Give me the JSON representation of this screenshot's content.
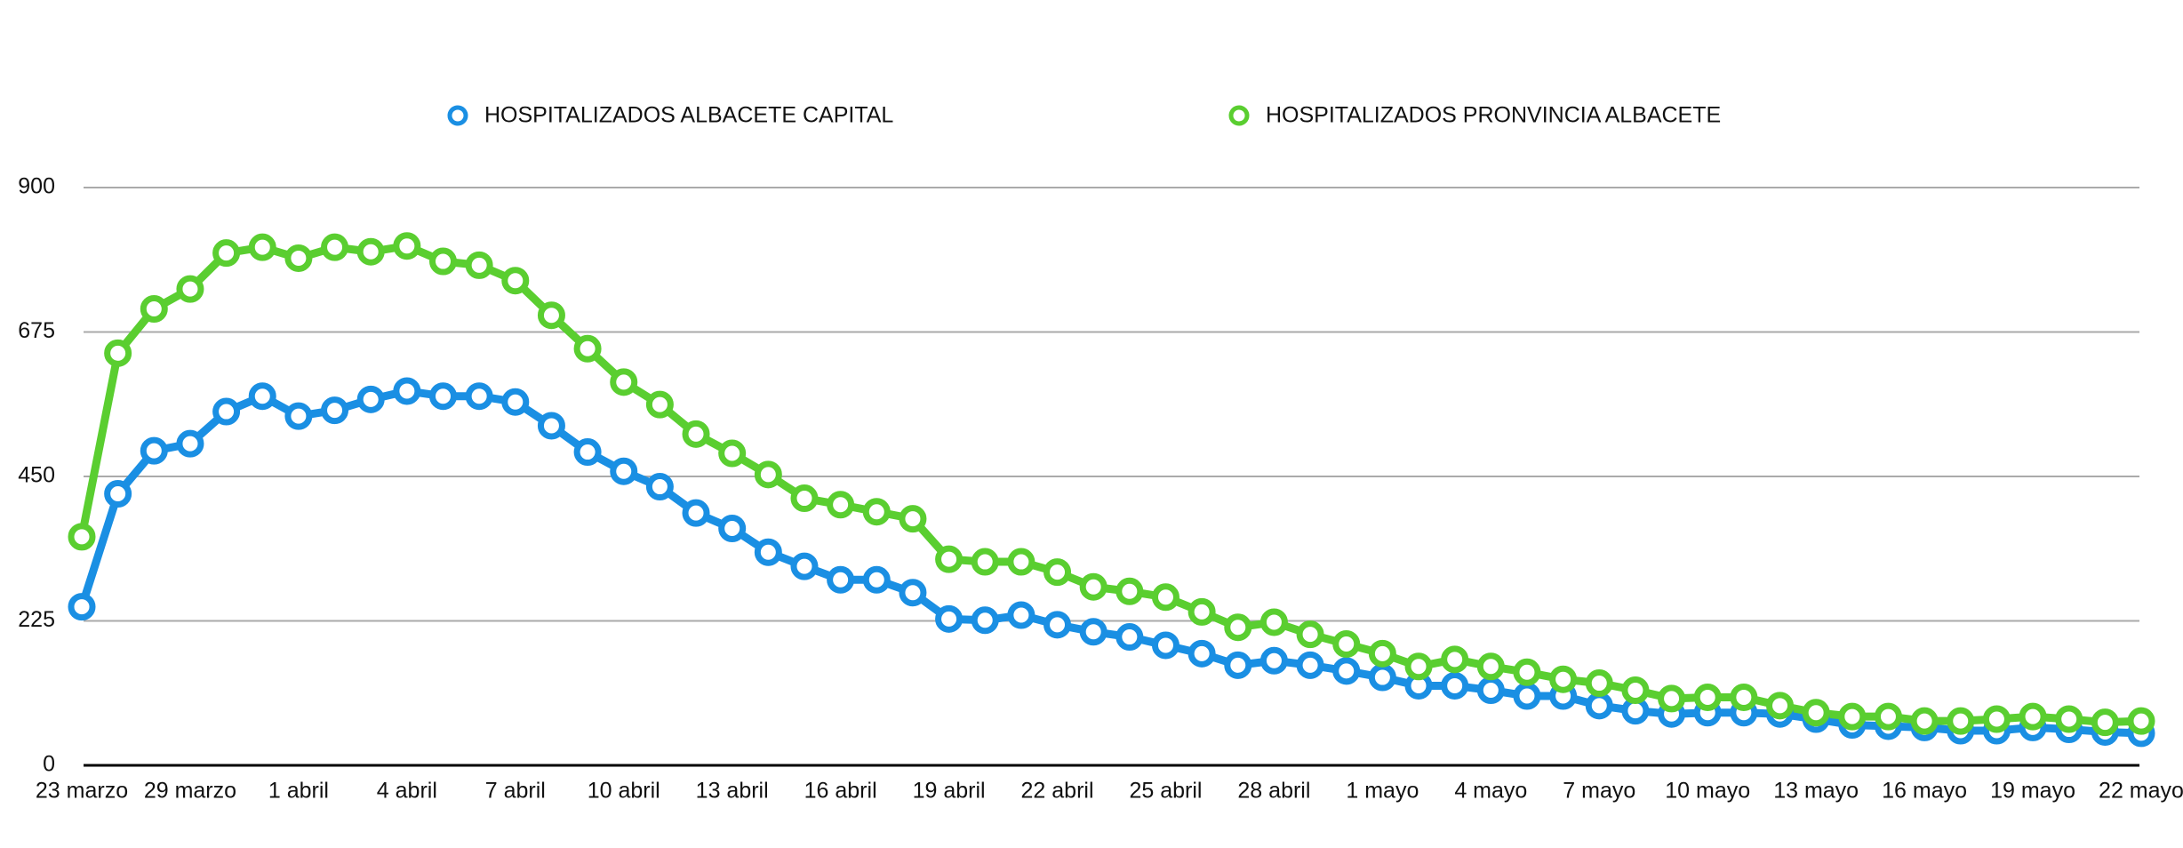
{
  "chart_data": {
    "type": "line",
    "categories": [
      "23 marzo",
      null,
      null,
      "29 marzo",
      null,
      null,
      "1 abril",
      null,
      null,
      "4 abril",
      null,
      null,
      "7 abril",
      null,
      null,
      "10 abril",
      null,
      null,
      "13 abril",
      null,
      null,
      "16 abril",
      null,
      null,
      "19 abril",
      null,
      null,
      "22 abril",
      null,
      null,
      "25 abril",
      null,
      null,
      "28 abril",
      null,
      null,
      "1 mayo",
      null,
      null,
      "4 mayo",
      null,
      null,
      "7 mayo",
      null,
      null,
      "10 mayo",
      null,
      null,
      "13 mayo",
      null,
      null,
      "16 mayo",
      null,
      null,
      "19 mayo",
      null,
      null,
      "22 mayo"
    ],
    "series": [
      {
        "name": "HOSPITALIZADOS ALBACETE CAPITAL",
        "color": "#1a8fe3",
        "values": [
          247,
          423,
          490,
          501,
          551,
          575,
          544,
          553,
          570,
          583,
          575,
          575,
          566,
          529,
          488,
          458,
          434,
          393,
          369,
          332,
          310,
          289,
          289,
          269,
          228,
          226,
          234,
          219,
          208,
          200,
          187,
          174,
          156,
          163,
          156,
          147,
          137,
          124,
          124,
          117,
          108,
          108,
          93,
          85,
          80,
          82,
          82,
          80,
          72,
          63,
          61,
          59,
          54,
          54,
          59,
          56,
          52,
          50
        ]
      },
      {
        "name": "HOSPITALIZADOS PRONVINCIA ALBACETE",
        "color": "#5ace30",
        "values": [
          356,
          642,
          711,
          742,
          798,
          807,
          790,
          807,
          800,
          809,
          785,
          779,
          755,
          701,
          649,
          597,
          562,
          516,
          486,
          453,
          416,
          406,
          395,
          384,
          321,
          317,
          317,
          301,
          278,
          271,
          262,
          239,
          215,
          223,
          204,
          189,
          174,
          154,
          165,
          154,
          145,
          134,
          128,
          117,
          104,
          106,
          106,
          93,
          82,
          76,
          76,
          69,
          69,
          72,
          76,
          72,
          67,
          69
        ]
      }
    ],
    "ylim": [
      0,
      900
    ],
    "yticks": [
      0,
      225,
      450,
      675,
      900
    ],
    "grid": true,
    "legend": "top"
  }
}
